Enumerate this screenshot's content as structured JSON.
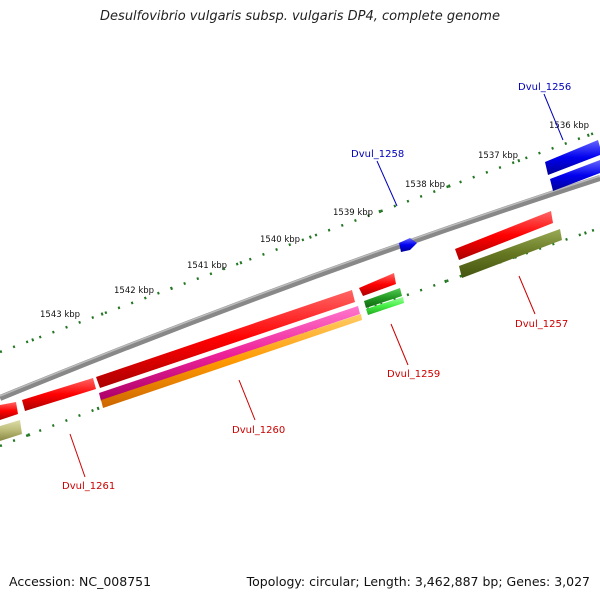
{
  "map": {
    "title": "Desulfovibrio vulgaris subsp. vulgaris DP4, complete genome",
    "accession": "Accession: NC_008751",
    "summary": "Topology: circular; Length: 3,462,887 bp; Genes: 3,027",
    "colors": {
      "backbone": "#888888",
      "tick": "#227722",
      "forward_gene_label": "#0000bb",
      "reverse_gene_label": "#cc0000"
    },
    "kbp_labels": [
      "1536 kbp",
      "1537 kbp",
      "1538 kbp",
      "1539 kbp",
      "1540 kbp",
      "1541 kbp",
      "1542 kbp",
      "1543 kbp"
    ],
    "gene_labels": [
      "Dvul_1256",
      "Dvul_1258",
      "Dvul_1257",
      "Dvul_1259",
      "Dvul_1260",
      "Dvul_1261"
    ]
  }
}
